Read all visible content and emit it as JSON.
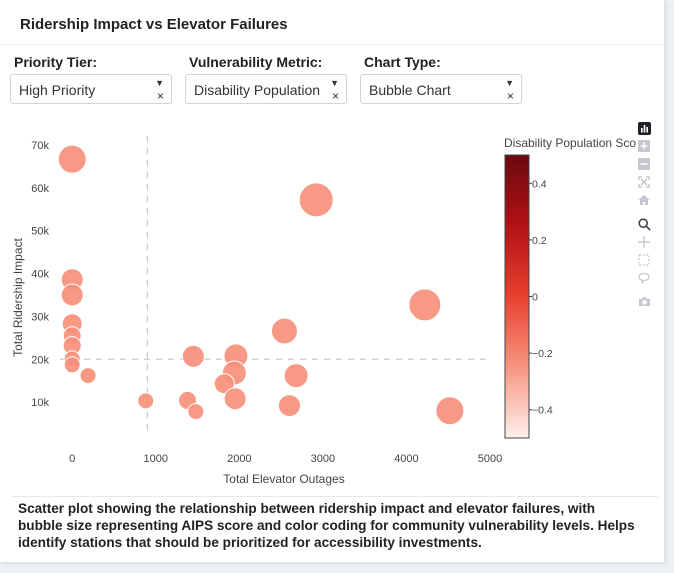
{
  "title": "Ridership Impact vs Elevator Failures",
  "filters": [
    {
      "label": "Priority Tier:",
      "value": "High Priority"
    },
    {
      "label": "Vulnerability Metric:",
      "value": "Disability Population"
    },
    {
      "label": "Chart Type:",
      "value": "Bubble Chart"
    }
  ],
  "chart_data": {
    "type": "scatter",
    "xlabel": "Total Elevator Outages",
    "ylabel": "Total Ridership Impact",
    "xlim": [
      -170,
      5000
    ],
    "ylim": [
      0,
      73500
    ],
    "xticks": [
      0,
      1000,
      2000,
      3000,
      4000,
      5000
    ],
    "xtick_labels": [
      "0",
      "1000",
      "2000",
      "3000",
      "4000",
      "5000"
    ],
    "yticks": [
      10000,
      20000,
      30000,
      40000,
      50000,
      60000,
      70000
    ],
    "ytick_labels": [
      "10k",
      "20k",
      "30k",
      "40k",
      "50k",
      "60k",
      "70k"
    ],
    "reference_lines": {
      "x": 900,
      "y": 20000
    },
    "colorbar": {
      "title": "Disability Population Score",
      "range": [
        -0.5,
        0.5
      ],
      "ticks": [
        0.4,
        0.2,
        0,
        -0.2,
        -0.4
      ],
      "tick_labels": [
        "0.4",
        "0.2",
        "0",
        "−0.2",
        "−0.4"
      ],
      "colors": [
        "#fff0ea",
        "#f79680",
        "#e8412e",
        "#b31116",
        "#6b0a0f"
      ]
    },
    "points": [
      {
        "x": 0,
        "y": 66700,
        "size": 28
      },
      {
        "x": 2920,
        "y": 57200,
        "size": 34
      },
      {
        "x": 0,
        "y": 38600,
        "size": 22
      },
      {
        "x": 0,
        "y": 35000,
        "size": 22
      },
      {
        "x": 4220,
        "y": 32700,
        "size": 32
      },
      {
        "x": 0,
        "y": 28300,
        "size": 20
      },
      {
        "x": 2540,
        "y": 26600,
        "size": 26
      },
      {
        "x": 0,
        "y": 25500,
        "size": 18
      },
      {
        "x": 0,
        "y": 23200,
        "size": 18
      },
      {
        "x": 1450,
        "y": 20700,
        "size": 22
      },
      {
        "x": 1960,
        "y": 20800,
        "size": 24
      },
      {
        "x": 0,
        "y": 20100,
        "size": 16
      },
      {
        "x": 0,
        "y": 18700,
        "size": 16
      },
      {
        "x": 1940,
        "y": 16800,
        "size": 24
      },
      {
        "x": 2680,
        "y": 16200,
        "size": 24
      },
      {
        "x": 190,
        "y": 16200,
        "size": 16
      },
      {
        "x": 1820,
        "y": 14300,
        "size": 20
      },
      {
        "x": 880,
        "y": 10300,
        "size": 16
      },
      {
        "x": 1380,
        "y": 10400,
        "size": 18
      },
      {
        "x": 1950,
        "y": 10800,
        "size": 22
      },
      {
        "x": 2600,
        "y": 9200,
        "size": 22
      },
      {
        "x": 4520,
        "y": 8000,
        "size": 28
      },
      {
        "x": 1480,
        "y": 7800,
        "size": 16
      }
    ]
  },
  "modebar": {
    "icons": [
      "plotly-logo-icon",
      "zoom-in-icon",
      "zoom-out-icon",
      "autoscale-icon",
      "reset-axes-icon",
      "zoom-icon",
      "pan-icon",
      "box-select-icon",
      "lasso-select-icon",
      "camera-icon"
    ]
  },
  "caption": "Scatter plot showing the relationship between ridership impact and elevator failures, with bubble size representing AIPS score and color coding for community vulnerability levels. Helps identify stations that should be prioritized for accessibility investments."
}
